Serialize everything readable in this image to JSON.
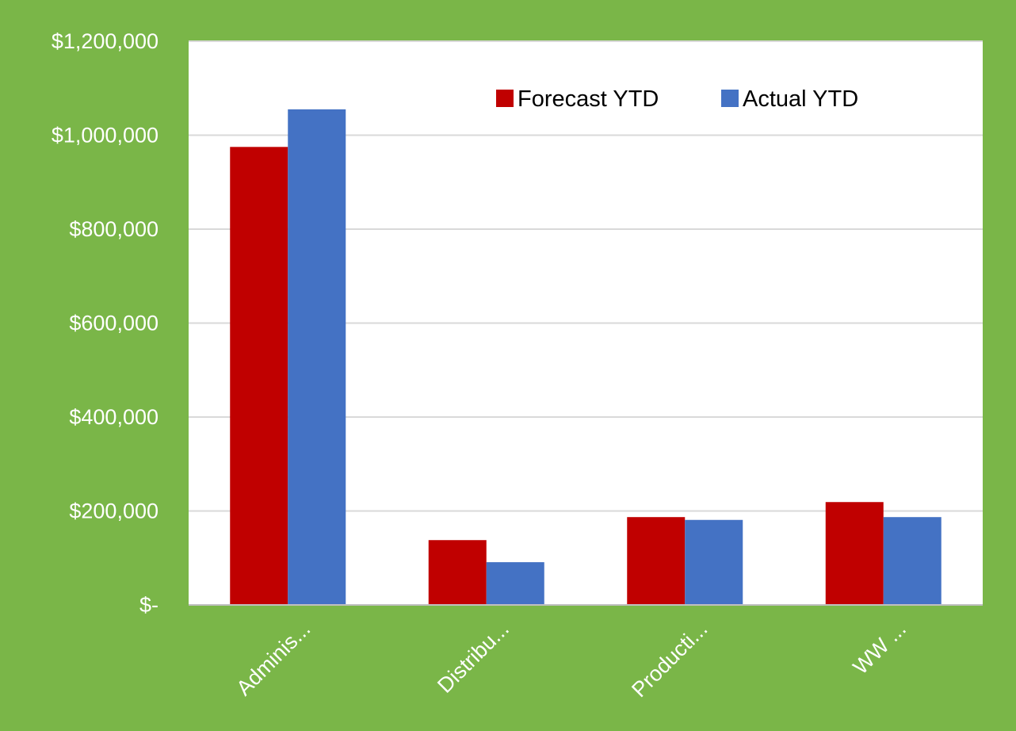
{
  "chart_data": {
    "type": "bar",
    "categories": [
      "Adminis...",
      "Distribu...",
      "Producti...",
      "WW ..."
    ],
    "series": [
      {
        "name": "Forecast YTD",
        "color": "#C00000",
        "values": [
          975000,
          138000,
          187000,
          219000
        ]
      },
      {
        "name": "Actual YTD",
        "color": "#4472C4",
        "values": [
          1055000,
          91000,
          181000,
          187000
        ]
      }
    ],
    "y_ticks": [
      {
        "value": 0,
        "label": "$-"
      },
      {
        "value": 200000,
        "label": "$200,000"
      },
      {
        "value": 400000,
        "label": "$400,000"
      },
      {
        "value": 600000,
        "label": "$600,000"
      },
      {
        "value": 800000,
        "label": "$800,000"
      },
      {
        "value": 1000000,
        "label": "$1,000,000"
      },
      {
        "value": 1200000,
        "label": "$1,200,000"
      }
    ],
    "ylim": [
      0,
      1200000
    ],
    "title": "",
    "xlabel": "",
    "ylabel": "",
    "grid": true,
    "legend_position": "top-right",
    "colors": {
      "frame_background": "#7AB648",
      "plot_background": "#FFFFFF",
      "gridline": "#D9D9D9",
      "axis_line": "#BFBFBF",
      "label_text": "#FFFFFF",
      "legend_text": "#000000"
    }
  }
}
